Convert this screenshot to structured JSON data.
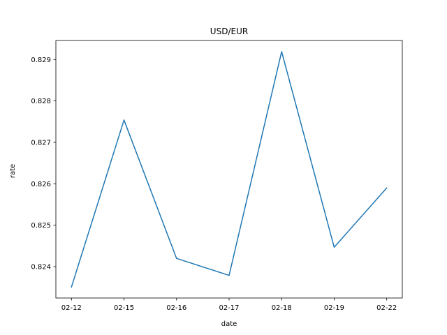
{
  "chart_data": {
    "type": "line",
    "title": "USD/EUR",
    "xlabel": "date",
    "ylabel": "rate",
    "categories": [
      "02-12",
      "02-15",
      "02-16",
      "02-17",
      "02-18",
      "02-19",
      "02-22"
    ],
    "series": [
      {
        "values": [
          0.82351,
          0.82754,
          0.8242,
          0.82379,
          0.82919,
          0.82447,
          0.8259
        ],
        "color": "#1f77b4"
      }
    ],
    "yticks": [
      0.824,
      0.825,
      0.826,
      0.827,
      0.828,
      0.829
    ],
    "ytick_labels": [
      "0.824",
      "0.825",
      "0.826",
      "0.827",
      "0.828",
      "0.829"
    ],
    "ylim": [
      0.823244,
      0.829459
    ],
    "grid": false,
    "legend": "none"
  }
}
